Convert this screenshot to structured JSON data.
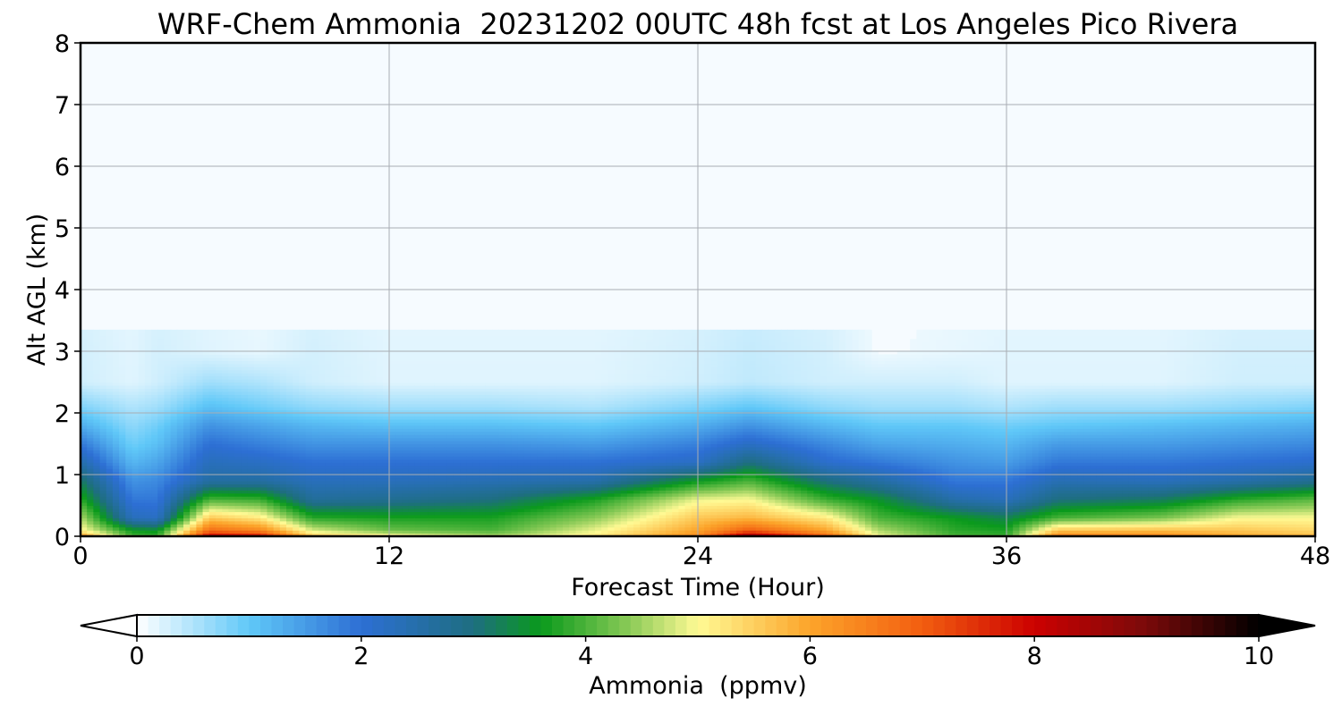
{
  "chart_data": {
    "type": "heatmap",
    "title": "WRF-Chem Ammonia  20231202 00UTC 48h fcst at Los Angeles Pico Rivera",
    "xlabel": "Forecast Time (Hour)",
    "ylabel": "Alt AGL (km)",
    "xlim": [
      0,
      48
    ],
    "ylim": [
      0,
      8
    ],
    "x_ticks": [
      0,
      12,
      24,
      36,
      48
    ],
    "y_ticks": [
      0,
      1,
      2,
      3,
      4,
      5,
      6,
      7,
      8
    ],
    "grid": true,
    "colorbar": {
      "label": "Ammonia  (ppmv)",
      "range": [
        0,
        10
      ],
      "ticks": [
        0,
        2,
        4,
        6,
        8,
        10
      ],
      "extend": "both",
      "stops": [
        {
          "v": 0.0,
          "c": "#ffffff"
        },
        {
          "v": 1.0,
          "c": "#60c8f8"
        },
        {
          "v": 2.0,
          "c": "#2d6fd4"
        },
        {
          "v": 3.0,
          "c": "#1e6e80"
        },
        {
          "v": 3.6,
          "c": "#0a9a1c"
        },
        {
          "v": 4.4,
          "c": "#8ccb58"
        },
        {
          "v": 5.0,
          "c": "#fffa94"
        },
        {
          "v": 6.0,
          "c": "#fca42a"
        },
        {
          "v": 7.0,
          "c": "#f25e10"
        },
        {
          "v": 8.0,
          "c": "#cc0000"
        },
        {
          "v": 9.0,
          "c": "#7a0a0a"
        },
        {
          "v": 10.0,
          "c": "#000000"
        }
      ],
      "under_color": "#ffffff",
      "over_color": "#000000"
    },
    "background_color": "#f6fbff",
    "z_units": "ppmv",
    "profiles": [
      {
        "hour": 0,
        "alt_km": [
          0,
          0.1,
          0.3,
          0.6,
          0.9,
          1.2,
          1.5,
          1.8,
          2.1,
          2.5,
          8
        ],
        "value": [
          6.2,
          5.1,
          4.6,
          3.8,
          3.2,
          2.5,
          1.9,
          1.3,
          0.8,
          0.3,
          0.05
        ]
      },
      {
        "hour": 2,
        "alt_km": [
          0,
          0.1,
          0.3,
          0.6,
          0.9,
          1.2,
          1.5,
          1.8,
          2.1,
          2.5,
          8
        ],
        "value": [
          4.0,
          3.6,
          2.3,
          1.9,
          1.6,
          1.2,
          0.9,
          0.7,
          0.5,
          0.2,
          0.05
        ]
      },
      {
        "hour": 3,
        "alt_km": [
          0,
          0.1,
          0.3,
          0.6,
          0.9,
          1.2,
          1.5,
          1.8,
          2.1,
          2.5,
          8
        ],
        "value": [
          3.9,
          3.5,
          2.2,
          1.9,
          1.7,
          1.4,
          1.1,
          0.9,
          0.6,
          0.3,
          0.05
        ]
      },
      {
        "hour": 5,
        "alt_km": [
          0,
          0.1,
          0.3,
          0.6,
          0.9,
          1.2,
          1.5,
          1.8,
          2.1,
          2.5,
          3.0,
          8
        ],
        "value": [
          8.2,
          6.8,
          5.6,
          4.0,
          2.6,
          2.3,
          2.0,
          1.6,
          1.1,
          0.6,
          0.2,
          0.05
        ]
      },
      {
        "hour": 7,
        "alt_km": [
          0,
          0.1,
          0.3,
          0.6,
          0.9,
          1.2,
          1.5,
          1.8,
          2.1,
          2.5,
          3.0,
          8
        ],
        "value": [
          8.0,
          6.4,
          5.2,
          3.9,
          2.6,
          2.2,
          1.8,
          1.4,
          0.9,
          0.5,
          0.15,
          0.05
        ]
      },
      {
        "hour": 9,
        "alt_km": [
          0,
          0.1,
          0.3,
          0.6,
          0.9,
          1.2,
          1.5,
          1.8,
          2.1,
          2.5,
          8
        ],
        "value": [
          5.6,
          4.8,
          3.8,
          2.7,
          2.3,
          2.0,
          1.6,
          1.2,
          0.7,
          0.3,
          0.05
        ]
      },
      {
        "hour": 12,
        "alt_km": [
          0,
          0.1,
          0.3,
          0.6,
          0.9,
          1.2,
          1.5,
          1.8,
          2.1,
          2.5,
          8
        ],
        "value": [
          5.2,
          4.2,
          3.7,
          2.8,
          2.3,
          2.0,
          1.6,
          1.1,
          0.6,
          0.2,
          0.05
        ]
      },
      {
        "hour": 16,
        "alt_km": [
          0,
          0.1,
          0.3,
          0.6,
          0.9,
          1.2,
          1.5,
          1.8,
          2.1,
          2.5,
          8
        ],
        "value": [
          4.6,
          4.0,
          3.7,
          3.0,
          2.4,
          2.0,
          1.6,
          1.1,
          0.6,
          0.2,
          0.05
        ]
      },
      {
        "hour": 20,
        "alt_km": [
          0,
          0.1,
          0.3,
          0.6,
          0.9,
          1.2,
          1.5,
          1.8,
          2.1,
          2.5,
          8
        ],
        "value": [
          5.2,
          4.9,
          4.4,
          3.7,
          2.5,
          2.0,
          1.5,
          1.0,
          0.5,
          0.2,
          0.05
        ]
      },
      {
        "hour": 24,
        "alt_km": [
          0,
          0.1,
          0.3,
          0.6,
          0.9,
          1.2,
          1.5,
          1.8,
          2.1,
          2.5,
          8
        ],
        "value": [
          6.4,
          6.0,
          5.6,
          4.9,
          3.6,
          2.2,
          1.8,
          1.3,
          0.8,
          0.3,
          0.05
        ]
      },
      {
        "hour": 26,
        "alt_km": [
          0,
          0.1,
          0.3,
          0.6,
          0.9,
          1.2,
          1.5,
          1.8,
          2.1,
          2.5,
          8
        ],
        "value": [
          8.8,
          7.0,
          5.8,
          5.0,
          4.0,
          3.0,
          2.2,
          1.6,
          1.0,
          0.4,
          0.05
        ]
      },
      {
        "hour": 29,
        "alt_km": [
          0,
          0.1,
          0.3,
          0.6,
          0.9,
          1.2,
          1.5,
          1.8,
          2.1,
          2.5,
          8
        ],
        "value": [
          7.0,
          6.0,
          5.2,
          3.9,
          3.0,
          2.1,
          1.7,
          1.2,
          0.7,
          0.3,
          0.05
        ]
      },
      {
        "hour": 31,
        "alt_km": [
          0,
          0.1,
          0.3,
          0.6,
          0.9,
          1.2,
          1.5,
          1.8,
          2.1,
          2.5,
          3.0,
          8
        ],
        "value": [
          5.0,
          4.6,
          4.0,
          3.5,
          2.6,
          1.9,
          1.4,
          1.0,
          0.6,
          0.3,
          0.1,
          0.05
        ]
      },
      {
        "hour": 34,
        "alt_km": [
          0,
          0.1,
          0.3,
          0.6,
          0.9,
          1.2,
          1.5,
          1.8,
          2.1,
          2.5,
          3.0,
          8
        ],
        "value": [
          4.0,
          3.8,
          3.6,
          2.5,
          1.9,
          1.6,
          1.3,
          1.0,
          0.6,
          0.3,
          0.15,
          0.05
        ]
      },
      {
        "hour": 36,
        "alt_km": [
          0,
          0.1,
          0.3,
          0.6,
          0.9,
          1.2,
          1.5,
          1.8,
          2.1,
          2.5,
          8
        ],
        "value": [
          3.9,
          3.7,
          3.3,
          2.3,
          1.9,
          1.5,
          1.2,
          0.9,
          0.5,
          0.2,
          0.05
        ]
      },
      {
        "hour": 38,
        "alt_km": [
          0,
          0.1,
          0.3,
          0.6,
          0.9,
          1.2,
          1.5,
          1.8,
          2.1,
          2.5,
          8
        ],
        "value": [
          6.6,
          5.6,
          4.0,
          3.0,
          2.4,
          1.9,
          1.5,
          1.0,
          0.6,
          0.2,
          0.05
        ]
      },
      {
        "hour": 42,
        "alt_km": [
          0,
          0.1,
          0.3,
          0.6,
          0.9,
          1.2,
          1.5,
          1.8,
          2.1,
          2.5,
          8
        ],
        "value": [
          6.5,
          5.7,
          4.3,
          3.2,
          2.3,
          1.9,
          1.5,
          1.1,
          0.6,
          0.2,
          0.05
        ]
      },
      {
        "hour": 45,
        "alt_km": [
          0,
          0.1,
          0.3,
          0.6,
          0.9,
          1.2,
          1.5,
          1.8,
          2.1,
          2.5,
          8
        ],
        "value": [
          6.0,
          5.6,
          5.0,
          3.8,
          2.5,
          2.0,
          1.6,
          1.2,
          0.7,
          0.3,
          0.05
        ]
      },
      {
        "hour": 48,
        "alt_km": [
          0,
          0.1,
          0.3,
          0.6,
          0.9,
          1.2,
          1.5,
          1.8,
          2.1,
          2.5,
          8
        ],
        "value": [
          5.8,
          5.4,
          5.0,
          4.1,
          2.8,
          2.1,
          1.7,
          1.3,
          0.8,
          0.3,
          0.05
        ]
      }
    ]
  }
}
